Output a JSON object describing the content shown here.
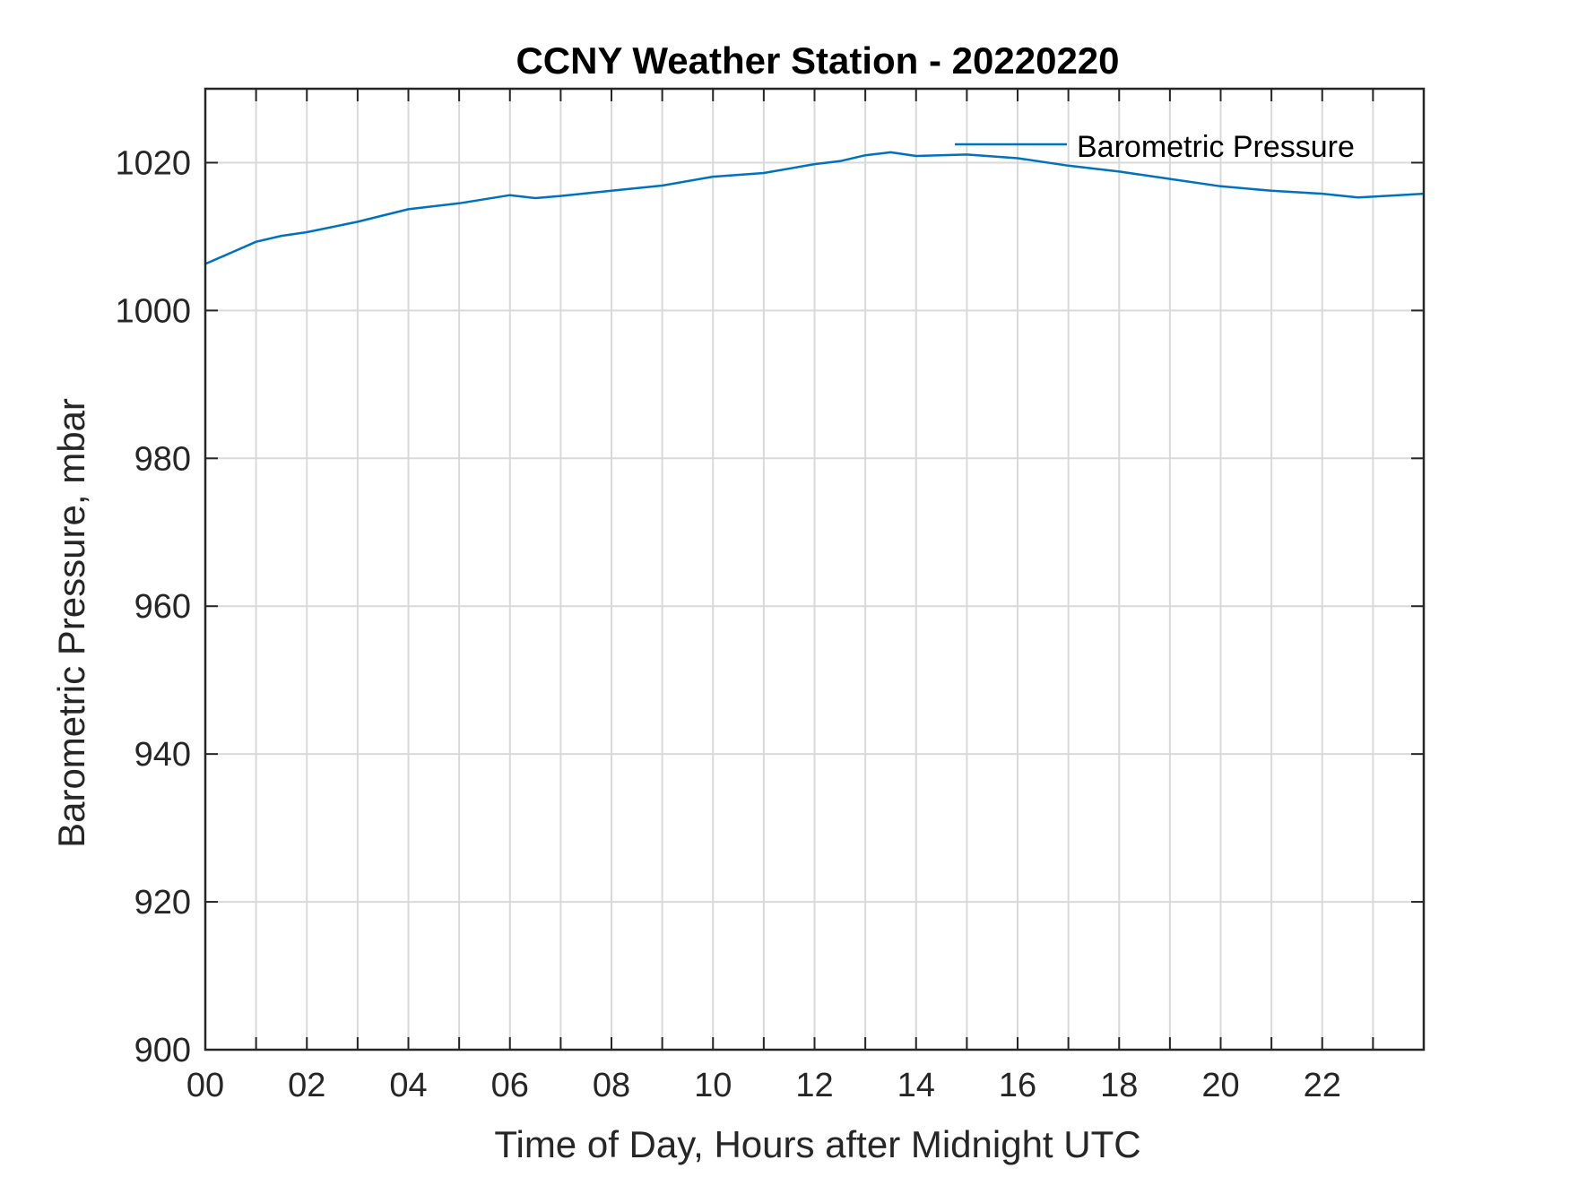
{
  "colors": {
    "series": "#0072BD",
    "axis": "#262626",
    "grid": "#d9d9d9",
    "background": "#ffffff"
  },
  "chart_data": {
    "type": "line",
    "title": "CCNY Weather Station - 20220220",
    "xlabel": "Time of Day, Hours after Midnight UTC",
    "ylabel": "Barometric Pressure, mbar",
    "xlim": [
      0,
      24
    ],
    "ylim": [
      900,
      1030
    ],
    "xticks": [
      0,
      2,
      4,
      6,
      8,
      10,
      12,
      14,
      16,
      18,
      20,
      22
    ],
    "xtick_labels": [
      "00",
      "02",
      "04",
      "06",
      "08",
      "10",
      "12",
      "14",
      "16",
      "18",
      "20",
      "22"
    ],
    "yticks": [
      900,
      920,
      940,
      960,
      980,
      1000,
      1020
    ],
    "ytick_labels": [
      "900",
      "920",
      "940",
      "960",
      "980",
      "1000",
      "1020"
    ],
    "grid": true,
    "minor_x_gridlines": true,
    "legend": {
      "placement": "top-right",
      "entries": [
        "Barometric Pressure"
      ]
    },
    "series": [
      {
        "name": "Barometric Pressure",
        "x": [
          0,
          0.5,
          1,
          1.5,
          2,
          3,
          4,
          5,
          6,
          6.5,
          7,
          8,
          9,
          10,
          11,
          12,
          12.5,
          13,
          13.5,
          14,
          15,
          16,
          17,
          18,
          19,
          20,
          21,
          22,
          22.7,
          23,
          24
        ],
        "y": [
          1006.3,
          1007.8,
          1009.3,
          1010.1,
          1010.6,
          1012.0,
          1013.7,
          1014.5,
          1015.6,
          1015.2,
          1015.5,
          1016.2,
          1016.9,
          1018.1,
          1018.6,
          1019.8,
          1020.2,
          1021.0,
          1021.4,
          1020.9,
          1021.1,
          1020.6,
          1019.6,
          1018.8,
          1017.8,
          1016.8,
          1016.2,
          1015.8,
          1015.3,
          1015.4,
          1015.8
        ]
      }
    ]
  }
}
